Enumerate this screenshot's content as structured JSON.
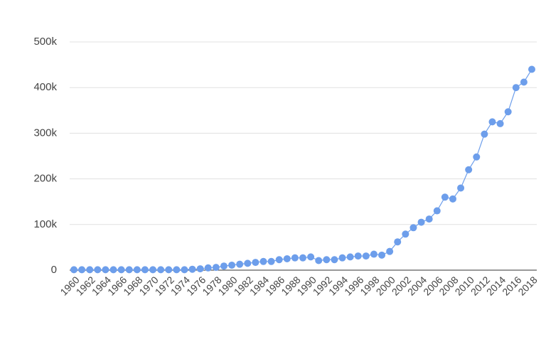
{
  "chart_data": {
    "type": "line",
    "x": [
      1960,
      1961,
      1962,
      1963,
      1964,
      1965,
      1966,
      1967,
      1968,
      1969,
      1970,
      1971,
      1972,
      1973,
      1974,
      1975,
      1976,
      1977,
      1978,
      1979,
      1980,
      1981,
      1982,
      1983,
      1984,
      1985,
      1986,
      1987,
      1988,
      1989,
      1990,
      1991,
      1992,
      1993,
      1994,
      1995,
      1996,
      1997,
      1998,
      1999,
      2000,
      2001,
      2002,
      2003,
      2004,
      2005,
      2006,
      2007,
      2008,
      2009,
      2010,
      2011,
      2012,
      2013,
      2014,
      2015,
      2016,
      2017,
      2018
    ],
    "series": [
      {
        "name": null,
        "color": "#6d9eeb",
        "values": [
          1000,
          1000,
          1000,
          1000,
          1000,
          1000,
          1000,
          1000,
          1000,
          1000,
          1000,
          1000,
          1000,
          1000,
          1000,
          2000,
          3000,
          5000,
          6000,
          9000,
          11000,
          13000,
          15000,
          17000,
          19000,
          19000,
          23000,
          25000,
          27000,
          27000,
          29000,
          21000,
          23000,
          23000,
          27000,
          29000,
          31000,
          31000,
          35000,
          33000,
          41000,
          62000,
          79000,
          93000,
          105000,
          112000,
          130000,
          160000,
          156000,
          180000,
          220000,
          248000,
          298000,
          325000,
          321000,
          347000,
          400000,
          412000,
          440000
        ]
      }
    ],
    "xlim": [
      1960,
      2018
    ],
    "xticks": [
      1960,
      1962,
      1964,
      1966,
      1968,
      1970,
      1972,
      1974,
      1976,
      1978,
      1980,
      1982,
      1984,
      1986,
      1988,
      1990,
      1992,
      1994,
      1996,
      1998,
      2000,
      2002,
      2004,
      2006,
      2008,
      2010,
      2012,
      2014,
      2016,
      2018
    ],
    "ylim": [
      0,
      500000
    ],
    "yticks": [
      0,
      {
        "value": 100000,
        "label": "100k"
      },
      {
        "value": 200000,
        "label": "200k"
      },
      {
        "value": 300000,
        "label": "300k"
      },
      {
        "value": 400000,
        "label": "400k"
      },
      {
        "value": 500000,
        "label": "500k"
      }
    ],
    "grid": true
  }
}
